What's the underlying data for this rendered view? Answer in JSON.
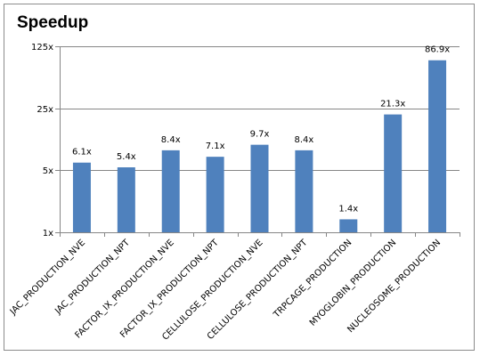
{
  "chart_data": {
    "type": "bar",
    "title": "Speedup",
    "yscale": "log",
    "ylim": [
      1,
      125
    ],
    "yticks": [
      1,
      5,
      25,
      125
    ],
    "ytick_labels": [
      "1x",
      "5x",
      "25x",
      "125x"
    ],
    "grid": true,
    "categories": [
      "JAC_PRODUCTION_NVE",
      "JAC_PRODUCTION_NPT",
      "FACTOR_IX_PRODUCTION_NVE",
      "FACTOR_IX_PRODUCTION_NPT",
      "CELLULOSE_PRODUCTION_NVE",
      "CELLULOSE_PRODUCTION_NPT",
      "TRPCAGE_PRODUCTION",
      "MYOGLOBIN_PRODUCTION",
      "NUCLEOSOME_PRODUCTION"
    ],
    "values": [
      6.1,
      5.4,
      8.4,
      7.1,
      9.7,
      8.4,
      1.4,
      21.3,
      86.9
    ],
    "data_labels": [
      "6.1x",
      "5.4x",
      "8.4x",
      "7.1x",
      "9.7x",
      "8.4x",
      "1.4x",
      "21.3x",
      "86.9x"
    ],
    "bar_color": "#4f81bd",
    "gridline_color": "#868686"
  }
}
